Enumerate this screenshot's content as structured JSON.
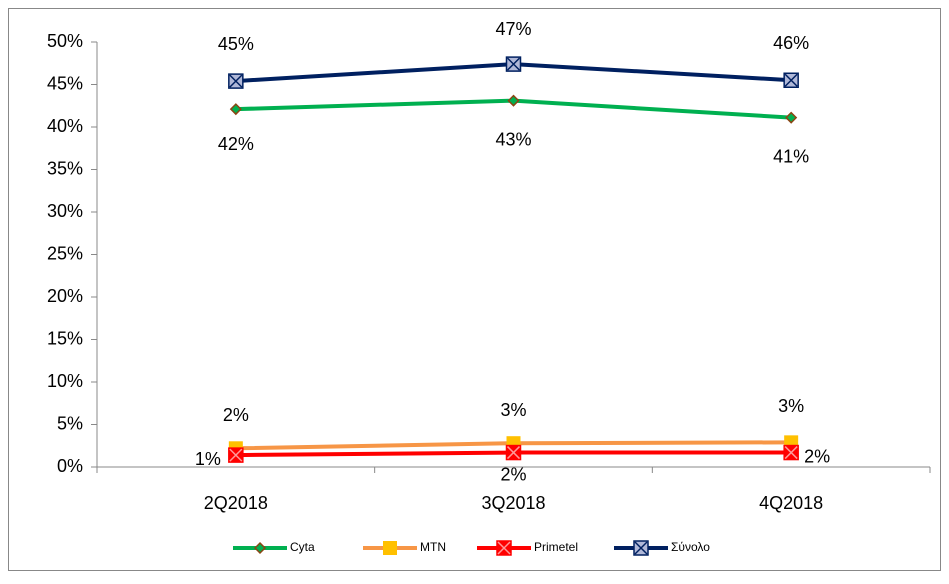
{
  "chart_data": {
    "type": "line",
    "categories": [
      "2Q2018",
      "3Q2018",
      "4Q2018"
    ],
    "series": [
      {
        "name": "Cyta",
        "color": "#00b050",
        "values": [
          42.1,
          43.1,
          41.1
        ],
        "value_labels": [
          "42%",
          "43%",
          "41%"
        ]
      },
      {
        "name": "MTN",
        "color": "#f79646",
        "values": [
          2.2,
          2.8,
          2.9
        ],
        "value_labels": [
          "2%",
          "3%",
          "3%"
        ]
      },
      {
        "name": "Primetel",
        "color": "#ff0000",
        "values": [
          1.4,
          1.7,
          1.7
        ],
        "value_labels": [
          "1%",
          "2%",
          "2%"
        ]
      },
      {
        "name": "Σύνολο",
        "color": "#002060",
        "values": [
          45.4,
          47.4,
          45.5
        ],
        "value_labels": [
          "45%",
          "47%",
          "46%"
        ]
      }
    ],
    "ylim": [
      0,
      50
    ],
    "yticks": [
      {
        "value": 0,
        "label": "0%"
      },
      {
        "value": 5,
        "label": "5%"
      },
      {
        "value": 10,
        "label": "10%"
      },
      {
        "value": 15,
        "label": "15%"
      },
      {
        "value": 20,
        "label": "20%"
      },
      {
        "value": 25,
        "label": "25%"
      },
      {
        "value": 30,
        "label": "30%"
      },
      {
        "value": 35,
        "label": "35%"
      },
      {
        "value": 40,
        "label": "40%"
      },
      {
        "value": 45,
        "label": "45%"
      },
      {
        "value": 50,
        "label": "50%"
      }
    ],
    "grid": false,
    "legend": "bottom"
  }
}
